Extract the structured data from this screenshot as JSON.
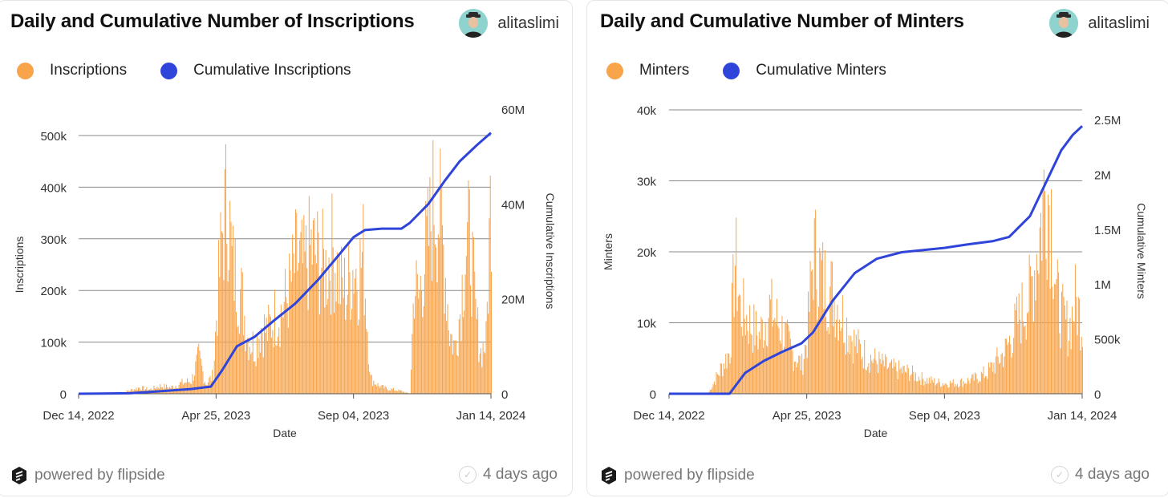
{
  "panels": [
    {
      "title": "Daily and Cumulative Number of Inscriptions",
      "author": "alitaslimi",
      "footer": "powered by flipside",
      "age": "4 days ago",
      "legend": [
        "Inscriptions",
        "Cumulative Inscriptions"
      ]
    },
    {
      "title": "Daily and Cumulative Number of Minters",
      "author": "alitaslimi",
      "footer": "powered by flipside",
      "age": "4 days ago",
      "legend": [
        "Minters",
        "Cumulative Minters"
      ]
    }
  ],
  "colors": {
    "bar": "#f7a44a",
    "line": "#2f44d8",
    "grid": "#8a8a8a"
  },
  "icons": {
    "avatar": "user-avatar-icon",
    "logo": "flipside-logo-icon",
    "check": "check-circle-icon"
  },
  "chart_data": [
    {
      "type": "bar+line",
      "xlabel": "Date",
      "ylabel": "Inscriptions",
      "y2label": "Cumulative Inscriptions",
      "xticks": [
        "Dec 14, 2022",
        "Apr 25, 2023",
        "Sep 04, 2023",
        "Jan 14, 2024"
      ],
      "yticks": [
        "0",
        "100k",
        "200k",
        "300k",
        "400k",
        "500k"
      ],
      "y2ticks": [
        "0",
        "20M",
        "40M",
        "60M"
      ],
      "ylim": [
        0,
        500000
      ],
      "y2lim": [
        0,
        60000000
      ],
      "x_start": "2022-12-14",
      "x_end": "2024-01-14",
      "series": [
        {
          "name": "Inscriptions",
          "kind": "bar",
          "x": [
            "2022-12-14",
            "2023-01-01",
            "2023-01-21",
            "2023-02-10",
            "2023-02-20",
            "2023-03-02",
            "2023-03-12",
            "2023-03-22",
            "2023-04-01",
            "2023-04-08",
            "2023-04-15",
            "2023-04-22",
            "2023-04-25",
            "2023-05-01",
            "2023-05-06",
            "2023-05-10",
            "2023-05-15",
            "2023-05-20",
            "2023-05-25",
            "2023-06-01",
            "2023-06-07",
            "2023-06-13",
            "2023-06-20",
            "2023-06-27",
            "2023-07-04",
            "2023-07-11",
            "2023-07-18",
            "2023-07-25",
            "2023-08-01",
            "2023-08-08",
            "2023-08-15",
            "2023-08-22",
            "2023-08-28",
            "2023-09-04",
            "2023-09-08",
            "2023-09-13",
            "2023-09-20",
            "2023-09-28",
            "2023-10-05",
            "2023-10-12",
            "2023-10-20",
            "2023-10-28",
            "2023-11-01",
            "2023-11-05",
            "2023-11-10",
            "2023-11-15",
            "2023-11-20",
            "2023-11-25",
            "2023-11-30",
            "2023-12-05",
            "2023-12-10",
            "2023-12-15",
            "2023-12-20",
            "2023-12-25",
            "2023-12-30",
            "2024-01-04",
            "2024-01-09",
            "2024-01-14"
          ],
          "values": [
            0,
            0,
            0,
            12000,
            8000,
            15000,
            12000,
            20000,
            25000,
            70000,
            20000,
            35000,
            150000,
            320000,
            380000,
            250000,
            220000,
            180000,
            110000,
            90000,
            130000,
            120000,
            150000,
            160000,
            200000,
            260000,
            240000,
            280000,
            260000,
            240000,
            280000,
            210000,
            200000,
            250000,
            230000,
            270000,
            30000,
            15000,
            10000,
            8000,
            5000,
            0,
            220000,
            180000,
            250000,
            300000,
            380000,
            350000,
            260000,
            120000,
            90000,
            160000,
            280000,
            300000,
            150000,
            80000,
            100000,
            420000
          ]
        },
        {
          "name": "Cumulative Inscriptions",
          "kind": "line",
          "x": [
            "2022-12-14",
            "2023-02-01",
            "2023-03-01",
            "2023-04-01",
            "2023-04-20",
            "2023-05-01",
            "2023-05-15",
            "2023-06-01",
            "2023-06-20",
            "2023-07-10",
            "2023-08-01",
            "2023-08-20",
            "2023-09-04",
            "2023-09-15",
            "2023-10-01",
            "2023-10-20",
            "2023-10-28",
            "2023-11-15",
            "2023-12-01",
            "2023-12-15",
            "2024-01-01",
            "2024-01-14"
          ],
          "values": [
            0,
            100000,
            500000,
            1000000,
            1500000,
            5000000,
            10000000,
            12000000,
            15500000,
            19000000,
            24000000,
            29000000,
            33000000,
            34500000,
            34800000,
            34800000,
            36000000,
            40000000,
            45000000,
            49000000,
            52500000,
            55000000
          ]
        }
      ]
    },
    {
      "type": "bar+line",
      "xlabel": "Date",
      "ylabel": "Minters",
      "y2label": "Cumulative Minters",
      "xticks": [
        "Dec 14, 2022",
        "Apr 25, 2023",
        "Sep 04, 2023",
        "Jan 14, 2024"
      ],
      "yticks": [
        "0",
        "10k",
        "20k",
        "30k",
        "40k"
      ],
      "y2ticks": [
        "0",
        "500k",
        "1M",
        "1.5M",
        "2M",
        "2.5M"
      ],
      "ylim": [
        0,
        40000
      ],
      "y2lim": [
        0,
        2600000
      ],
      "x_start": "2022-12-14",
      "x_end": "2024-01-14",
      "series": [
        {
          "name": "Minters",
          "kind": "bar",
          "x": [
            "2022-12-14",
            "2023-01-20",
            "2023-02-10",
            "2023-02-15",
            "2023-02-20",
            "2023-03-01",
            "2023-03-10",
            "2023-03-20",
            "2023-04-01",
            "2023-04-10",
            "2023-04-20",
            "2023-04-25",
            "2023-05-01",
            "2023-05-10",
            "2023-05-20",
            "2023-06-01",
            "2023-06-10",
            "2023-06-20",
            "2023-07-01",
            "2023-07-15",
            "2023-08-01",
            "2023-08-15",
            "2023-09-01",
            "2023-09-15",
            "2023-10-01",
            "2023-10-15",
            "2023-11-01",
            "2023-11-15",
            "2023-11-25",
            "2023-12-01",
            "2023-12-05",
            "2023-12-10",
            "2023-12-15",
            "2023-12-20",
            "2023-12-25",
            "2024-01-01",
            "2024-01-07",
            "2024-01-14"
          ],
          "values": [
            0,
            0,
            6000,
            19000,
            12000,
            10000,
            8000,
            12000,
            9000,
            6000,
            4000,
            8000,
            20000,
            16000,
            14000,
            10000,
            7000,
            5500,
            4500,
            3500,
            3000,
            2000,
            1500,
            1500,
            2000,
            3000,
            6000,
            11000,
            14000,
            20000,
            24000,
            30000,
            26000,
            14000,
            11000,
            9000,
            13000,
            10000
          ]
        },
        {
          "name": "Cumulative Minters",
          "kind": "line",
          "x": [
            "2022-12-14",
            "2023-02-10",
            "2023-02-25",
            "2023-03-15",
            "2023-04-01",
            "2023-04-20",
            "2023-05-01",
            "2023-05-20",
            "2023-06-10",
            "2023-07-01",
            "2023-07-25",
            "2023-08-15",
            "2023-09-04",
            "2023-09-25",
            "2023-10-20",
            "2023-11-05",
            "2023-11-25",
            "2023-12-10",
            "2023-12-25",
            "2024-01-05",
            "2024-01-14"
          ],
          "values": [
            0,
            0,
            190000,
            300000,
            380000,
            460000,
            560000,
            850000,
            1100000,
            1230000,
            1290000,
            1310000,
            1330000,
            1360000,
            1390000,
            1430000,
            1620000,
            1920000,
            2220000,
            2360000,
            2440000
          ]
        }
      ]
    }
  ]
}
